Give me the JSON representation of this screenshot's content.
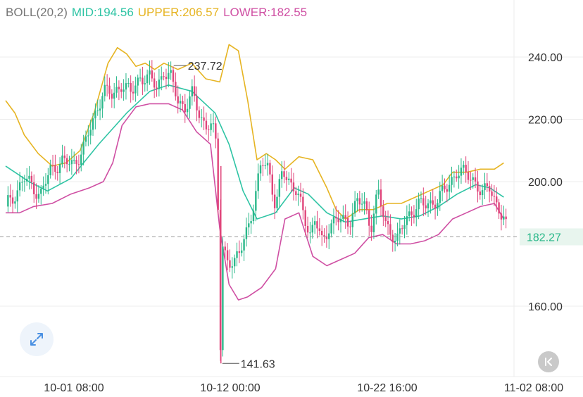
{
  "legend": {
    "indicator": "BOLL(20,2)",
    "mid": "MID:194.56",
    "upper": "UPPER:206.57",
    "lower": "LOWER:182.55"
  },
  "colors": {
    "indicator": "#777777",
    "mid": "#2ec4a4",
    "upper": "#e6b422",
    "lower": "#cf4fa3",
    "candle_up": "#2ab88a",
    "candle_down": "#e0457b",
    "grid": "#ececec",
    "text": "#333333"
  },
  "icons": {
    "expand": "expand-arrows-icon",
    "scroll": "scroll-to-latest-icon"
  },
  "chart_data": {
    "type": "candlestick",
    "ylim": [
      140,
      250
    ],
    "y_ticks": [
      "240.00",
      "220.00",
      "200.00",
      "160.00"
    ],
    "y_tick_values": [
      240,
      220,
      200,
      160
    ],
    "x_ticks": [
      "10-01 08:00",
      "10-12 00:00",
      "10-22 16:00",
      "11-02 08:00"
    ],
    "current_price": {
      "value": 182.27,
      "label": "182.27"
    },
    "max_marker": {
      "value": 237.72,
      "label": "237.72"
    },
    "min_marker": {
      "value": 141.63,
      "label": "141.63"
    },
    "price_path": [
      [
        0,
        192
      ],
      [
        4,
        196
      ],
      [
        8,
        201
      ],
      [
        12,
        198
      ],
      [
        15,
        196
      ],
      [
        19,
        203
      ],
      [
        24,
        207
      ],
      [
        29,
        205
      ],
      [
        34,
        212
      ],
      [
        38,
        220
      ],
      [
        42,
        230
      ],
      [
        46,
        227
      ],
      [
        50,
        232
      ],
      [
        54,
        228
      ],
      [
        58,
        234
      ],
      [
        62,
        233
      ],
      [
        65,
        230
      ],
      [
        68,
        236
      ],
      [
        71,
        233
      ],
      [
        74,
        226
      ],
      [
        77,
        224
      ],
      [
        80,
        228
      ],
      [
        83,
        222
      ],
      [
        86,
        218
      ],
      [
        88,
        219
      ],
      [
        90,
        214
      ],
      [
        91,
        205
      ],
      [
        92,
        155
      ],
      [
        92.5,
        142
      ],
      [
        93,
        180
      ],
      [
        95,
        176
      ],
      [
        98,
        172
      ],
      [
        101,
        179
      ],
      [
        104,
        186
      ],
      [
        107,
        192
      ],
      [
        110,
        208
      ],
      [
        113,
        205
      ],
      [
        116,
        190
      ],
      [
        119,
        205
      ],
      [
        122,
        200
      ],
      [
        125,
        196
      ],
      [
        128,
        190
      ],
      [
        131,
        183
      ],
      [
        133,
        188
      ],
      [
        136,
        180
      ],
      [
        139,
        186
      ],
      [
        142,
        188
      ],
      [
        145,
        187
      ],
      [
        148,
        188
      ],
      [
        151,
        194
      ],
      [
        154,
        192
      ],
      [
        157,
        186
      ],
      [
        160,
        197
      ],
      [
        163,
        186
      ],
      [
        166,
        184
      ],
      [
        168,
        181
      ],
      [
        171,
        186
      ],
      [
        174,
        190
      ],
      [
        177,
        193
      ],
      [
        180,
        192
      ],
      [
        183,
        193
      ],
      [
        186,
        195
      ],
      [
        190,
        198
      ],
      [
        194,
        204
      ],
      [
        198,
        202
      ],
      [
        202,
        200
      ],
      [
        205,
        196
      ],
      [
        208,
        198
      ],
      [
        211,
        193
      ],
      [
        214,
        188
      ],
      [
        216,
        182
      ]
    ],
    "mid": [
      [
        0,
        205
      ],
      [
        10,
        200
      ],
      [
        18,
        197
      ],
      [
        28,
        201
      ],
      [
        40,
        212
      ],
      [
        52,
        222
      ],
      [
        62,
        229
      ],
      [
        70,
        231
      ],
      [
        80,
        229
      ],
      [
        90,
        222
      ],
      [
        96,
        212
      ],
      [
        102,
        197
      ],
      [
        108,
        188
      ],
      [
        116,
        190
      ],
      [
        124,
        198
      ],
      [
        130,
        196
      ],
      [
        138,
        190
      ],
      [
        146,
        187
      ],
      [
        154,
        188
      ],
      [
        162,
        189
      ],
      [
        170,
        188
      ],
      [
        178,
        189
      ],
      [
        186,
        192
      ],
      [
        194,
        196
      ],
      [
        202,
        199
      ],
      [
        208,
        198
      ],
      [
        214,
        195
      ]
    ],
    "upper": [
      [
        0,
        226
      ],
      [
        4,
        222
      ],
      [
        8,
        215
      ],
      [
        14,
        209
      ],
      [
        20,
        205
      ],
      [
        26,
        206
      ],
      [
        32,
        210
      ],
      [
        38,
        222
      ],
      [
        44,
        238
      ],
      [
        48,
        243
      ],
      [
        52,
        241
      ],
      [
        56,
        237
      ],
      [
        60,
        238
      ],
      [
        64,
        236
      ],
      [
        68,
        238
      ],
      [
        74,
        236
      ],
      [
        80,
        238
      ],
      [
        86,
        233
      ],
      [
        92,
        232
      ],
      [
        96,
        244
      ],
      [
        100,
        242
      ],
      [
        104,
        226
      ],
      [
        108,
        207
      ],
      [
        112,
        209
      ],
      [
        116,
        207
      ],
      [
        120,
        204
      ],
      [
        126,
        208
      ],
      [
        132,
        207
      ],
      [
        138,
        198
      ],
      [
        142,
        191
      ],
      [
        146,
        188
      ],
      [
        152,
        191
      ],
      [
        158,
        191
      ],
      [
        164,
        193
      ],
      [
        170,
        193
      ],
      [
        176,
        195
      ],
      [
        182,
        197
      ],
      [
        188,
        199
      ],
      [
        192,
        203
      ],
      [
        198,
        203
      ],
      [
        204,
        204
      ],
      [
        210,
        204
      ],
      [
        214,
        206
      ]
    ],
    "lower": [
      [
        0,
        190
      ],
      [
        6,
        190
      ],
      [
        12,
        192
      ],
      [
        20,
        193
      ],
      [
        28,
        196
      ],
      [
        36,
        198
      ],
      [
        42,
        200
      ],
      [
        46,
        206
      ],
      [
        50,
        218
      ],
      [
        56,
        224
      ],
      [
        62,
        225
      ],
      [
        70,
        225
      ],
      [
        76,
        223
      ],
      [
        82,
        216
      ],
      [
        88,
        212
      ],
      [
        92,
        185
      ],
      [
        96,
        167
      ],
      [
        100,
        162
      ],
      [
        104,
        163
      ],
      [
        110,
        166
      ],
      [
        116,
        172
      ],
      [
        120,
        188
      ],
      [
        126,
        190
      ],
      [
        132,
        176
      ],
      [
        138,
        173
      ],
      [
        144,
        175
      ],
      [
        150,
        177
      ],
      [
        156,
        182
      ],
      [
        162,
        183
      ],
      [
        168,
        180
      ],
      [
        174,
        180
      ],
      [
        180,
        181
      ],
      [
        186,
        183
      ],
      [
        192,
        188
      ],
      [
        198,
        190
      ],
      [
        204,
        192
      ],
      [
        210,
        193
      ],
      [
        214,
        188
      ]
    ],
    "x_range": [
      0,
      216
    ]
  }
}
